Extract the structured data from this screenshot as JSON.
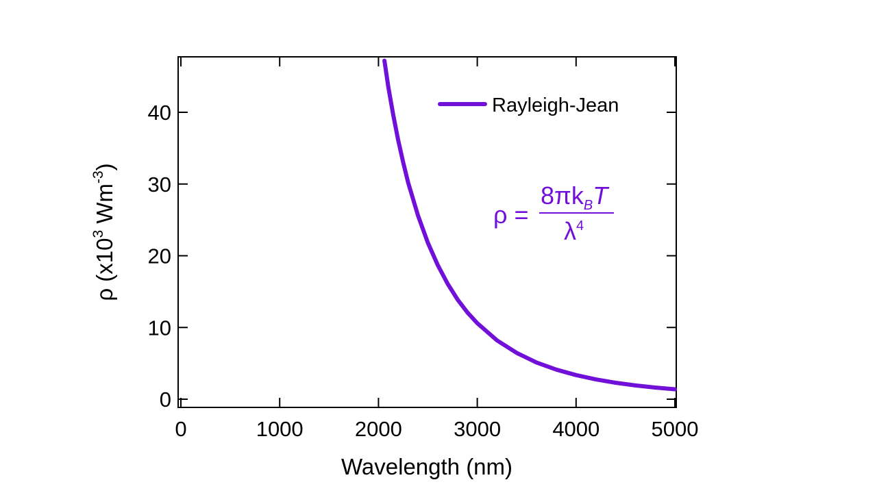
{
  "chart_data": {
    "type": "line",
    "title": "",
    "xlabel": "Wavelength (nm)",
    "ylabel": {
      "prefix": "ρ (x10",
      "exp1": "3",
      "middle": " Wm",
      "exp2": "-3",
      "suffix": ")"
    },
    "xlim": [
      0,
      5000
    ],
    "ylim": [
      -1,
      48
    ],
    "x_ticks": [
      0,
      1000,
      2000,
      3000,
      4000,
      5000
    ],
    "x_tick_labels": [
      "0",
      "1000",
      "2000",
      "3000",
      "4000",
      "5000"
    ],
    "y_ticks": [
      0,
      10,
      20,
      30,
      40
    ],
    "y_tick_labels": [
      "0",
      "10",
      "20",
      "30",
      "40"
    ],
    "grid": false,
    "legend_position": "top-right",
    "series": [
      {
        "name": "Rayleigh-Jean",
        "color": "#7010d8",
        "x": [
          2060,
          2100,
          2150,
          2200,
          2250,
          2300,
          2400,
          2500,
          2600,
          2700,
          2800,
          2900,
          3000,
          3200,
          3400,
          3600,
          3800,
          4000,
          4200,
          4400,
          4600,
          4800,
          5000
        ],
        "y": [
          47.2,
          43.5,
          39.6,
          36.1,
          33.0,
          30.2,
          25.6,
          21.8,
          18.7,
          16.1,
          13.9,
          12.1,
          10.6,
          8.2,
          6.44,
          5.12,
          4.12,
          3.36,
          2.76,
          2.29,
          1.92,
          1.62,
          1.38
        ]
      }
    ],
    "annotation": {
      "lhs": "ρ =",
      "numerator_main": "8πk",
      "numerator_sub": "B",
      "numerator_tail": "T",
      "denominator_main": "λ",
      "denominator_sup": "4",
      "color": "#7010d8"
    }
  }
}
